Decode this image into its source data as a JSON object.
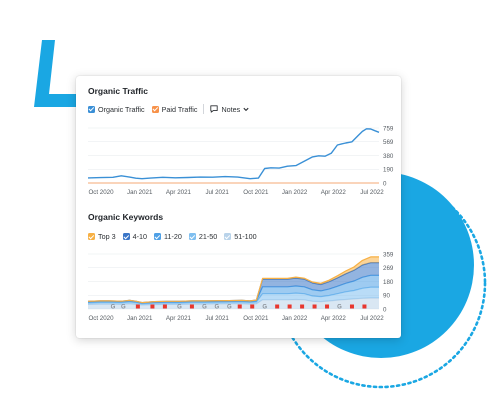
{
  "colors": {
    "accent_blue": "#1aa7e3",
    "line_blue": "#3a90d6",
    "paid_orange": "#f7924a",
    "top3_orange": "#f7b044",
    "kw_4_10": "#3b76c7",
    "kw_11_20": "#4ea0e6",
    "kw_21_50": "#7fbff0",
    "kw_51_100": "#b9d3ea",
    "google_marker": "#8a9097",
    "flag_marker": "#e8372e"
  },
  "organic_traffic": {
    "title": "Organic Traffic",
    "legend": [
      {
        "label": "Organic Traffic",
        "color": "#3a8fd6",
        "checked": true
      },
      {
        "label": "Paid Traffic",
        "color": "#f7924a",
        "checked": true
      }
    ],
    "notes_label": "Notes",
    "notes_icon": "comment-icon",
    "chart_data": {
      "type": "line",
      "x_tick_labels": [
        "Oct 2020",
        "Jan 2021",
        "Apr 2021",
        "Jul 2021",
        "Oct 2021",
        "Jan 2022",
        "Apr 2022",
        "Jul 2022"
      ],
      "y_tick_labels": [
        "759",
        "569",
        "380",
        "190",
        "0"
      ],
      "ylim": [
        0,
        759
      ],
      "grid": true,
      "series": [
        {
          "name": "Organic Traffic",
          "color": "#3a90d6",
          "x": [
            0,
            0.3,
            0.6,
            0.8,
            1.0,
            1.15,
            1.3,
            1.5,
            1.8,
            2.1,
            2.4,
            2.7,
            3.0,
            3.3,
            3.6,
            3.9,
            4.1,
            4.25,
            4.4,
            4.6,
            4.8,
            5.0,
            5.2,
            5.4,
            5.55,
            5.7,
            5.85,
            6.0,
            6.1,
            6.2,
            6.35,
            6.5,
            6.6,
            6.7,
            6.8,
            6.9,
            7.0
          ],
          "values": [
            70,
            74,
            78,
            100,
            82,
            66,
            60,
            68,
            78,
            72,
            76,
            82,
            80,
            88,
            82,
            60,
            68,
            200,
            210,
            205,
            232,
            240,
            300,
            360,
            376,
            370,
            410,
            525,
            540,
            552,
            568,
            655,
            712,
            748,
            745,
            722,
            700
          ]
        },
        {
          "name": "Paid Traffic",
          "color": "#f7924a",
          "x": [
            0,
            7.0
          ],
          "values": [
            0,
            0
          ]
        }
      ]
    }
  },
  "organic_keywords": {
    "title": "Organic Keywords",
    "legend": [
      {
        "label": "Top 3",
        "color": "#f7b044",
        "checked": true
      },
      {
        "label": "4-10",
        "color": "#3b76c7",
        "checked": true
      },
      {
        "label": "11-20",
        "color": "#4ea0e6",
        "checked": true
      },
      {
        "label": "21-50",
        "color": "#7fbff0",
        "checked": true
      },
      {
        "label": "51-100",
        "color": "#b9d3ea",
        "checked": true
      }
    ],
    "chart_data": {
      "type": "area",
      "stacked": true,
      "x_tick_labels": [
        "Oct 2020",
        "Jan 2021",
        "Apr 2021",
        "Jul 2021",
        "Oct 2021",
        "Jan 2022",
        "Apr 2022",
        "Jul 2022"
      ],
      "y_tick_labels": [
        "359",
        "269",
        "180",
        "90",
        "0"
      ],
      "ylim": [
        0,
        359
      ],
      "grid": true,
      "x": [
        0,
        0.3,
        0.5,
        0.8,
        1.0,
        1.15,
        1.3,
        1.6,
        1.9,
        2.2,
        2.5,
        2.8,
        3.1,
        3.4,
        3.7,
        3.9,
        4.05,
        4.2,
        4.5,
        4.8,
        5.0,
        5.2,
        5.4,
        5.6,
        5.8,
        6.0,
        6.2,
        6.4,
        6.6,
        6.8,
        7.0
      ],
      "series": [
        {
          "name": "51-100",
          "color": "#b9d3ea",
          "values": [
            30,
            32,
            32,
            30,
            34,
            30,
            26,
            28,
            30,
            30,
            32,
            32,
            33,
            34,
            34,
            32,
            34,
            60,
            60,
            60,
            62,
            60,
            50,
            48,
            52,
            58,
            62,
            66,
            70,
            72,
            72
          ]
        },
        {
          "name": "21-50",
          "color": "#7fbff0",
          "values": [
            10,
            11,
            11,
            11,
            12,
            11,
            8,
            10,
            10,
            10,
            11,
            11,
            11,
            11,
            12,
            11,
            12,
            40,
            40,
            40,
            42,
            40,
            35,
            32,
            36,
            42,
            50,
            55,
            65,
            70,
            70
          ]
        },
        {
          "name": "11-20",
          "color": "#4ea0e6",
          "values": [
            6,
            6,
            6,
            6,
            6,
            6,
            5,
            6,
            6,
            6,
            6,
            6,
            6,
            6,
            6,
            6,
            7,
            45,
            45,
            45,
            46,
            45,
            40,
            38,
            42,
            48,
            56,
            62,
            72,
            78,
            78
          ]
        },
        {
          "name": "4-10",
          "color": "#3b76c7",
          "values": [
            4,
            4,
            4,
            4,
            4,
            4,
            3,
            4,
            4,
            4,
            4,
            4,
            4,
            4,
            4,
            4,
            5,
            50,
            50,
            50,
            52,
            50,
            45,
            42,
            48,
            55,
            62,
            70,
            80,
            82,
            82
          ]
        },
        {
          "name": "Top 3",
          "color": "#f7b044",
          "values": [
            0,
            0,
            0,
            0,
            0,
            0,
            0,
            0,
            0,
            0,
            0,
            0,
            0,
            0,
            0,
            0,
            0,
            5,
            5,
            5,
            6,
            6,
            6,
            8,
            10,
            14,
            18,
            22,
            30,
            38,
            38
          ]
        }
      ],
      "markers": [
        {
          "type": "google",
          "x": 0.6
        },
        {
          "type": "google",
          "x": 0.85
        },
        {
          "type": "flag",
          "x": 1.2
        },
        {
          "type": "flag",
          "x": 1.55
        },
        {
          "type": "flag",
          "x": 1.85
        },
        {
          "type": "google",
          "x": 2.2
        },
        {
          "type": "flag",
          "x": 2.5
        },
        {
          "type": "google",
          "x": 2.8
        },
        {
          "type": "google",
          "x": 3.1
        },
        {
          "type": "google",
          "x": 3.4
        },
        {
          "type": "flag",
          "x": 3.65
        },
        {
          "type": "flag",
          "x": 3.95
        },
        {
          "type": "google",
          "x": 4.25
        },
        {
          "type": "flag",
          "x": 4.55
        },
        {
          "type": "flag",
          "x": 4.85
        },
        {
          "type": "flag",
          "x": 5.15
        },
        {
          "type": "flag",
          "x": 5.45
        },
        {
          "type": "flag",
          "x": 5.75
        },
        {
          "type": "google",
          "x": 6.05
        },
        {
          "type": "flag",
          "x": 6.35
        },
        {
          "type": "flag",
          "x": 6.65
        }
      ]
    }
  }
}
